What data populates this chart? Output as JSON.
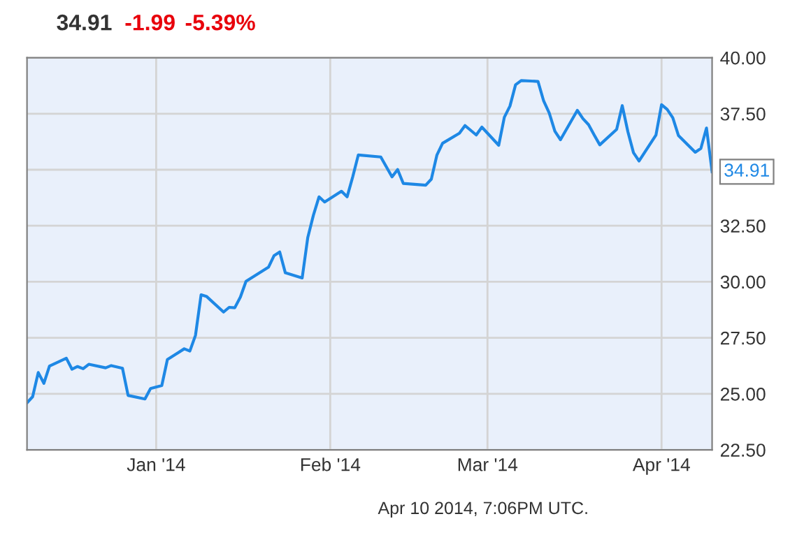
{
  "chart_data": {
    "type": "line",
    "title": "34.91",
    "annotations": [
      "-1.99",
      "-5.39%",
      {
        "text": "34.91",
        "x": "2014-04-10",
        "y": 34.91
      },
      "Apr 10 2014, 7:06PM UTC."
    ],
    "x": [
      "2013-12-09",
      "2013-12-10",
      "2013-12-11",
      "2013-12-12",
      "2013-12-13",
      "2013-12-16",
      "2013-12-17",
      "2013-12-18",
      "2013-12-19",
      "2013-12-20",
      "2013-12-23",
      "2013-12-24",
      "2013-12-26",
      "2013-12-27",
      "2013-12-30",
      "2013-12-31",
      "2014-01-02",
      "2014-01-03",
      "2014-01-06",
      "2014-01-07",
      "2014-01-08",
      "2014-01-09",
      "2014-01-10",
      "2014-01-13",
      "2014-01-14",
      "2014-01-15",
      "2014-01-16",
      "2014-01-17",
      "2014-01-21",
      "2014-01-22",
      "2014-01-23",
      "2014-01-24",
      "2014-01-27",
      "2014-01-28",
      "2014-01-29",
      "2014-01-30",
      "2014-01-31",
      "2014-02-03",
      "2014-02-04",
      "2014-02-05",
      "2014-02-06",
      "2014-02-10",
      "2014-02-12",
      "2014-02-13",
      "2014-02-14",
      "2014-02-18",
      "2014-02-19",
      "2014-02-20",
      "2014-02-21",
      "2014-02-24",
      "2014-02-25",
      "2014-02-26",
      "2014-02-27",
      "2014-02-28",
      "2014-03-03",
      "2014-03-04",
      "2014-03-05",
      "2014-03-06",
      "2014-03-07",
      "2014-03-10",
      "2014-03-11",
      "2014-03-12",
      "2014-03-13",
      "2014-03-14",
      "2014-03-17",
      "2014-03-18",
      "2014-03-19",
      "2014-03-20",
      "2014-03-21",
      "2014-03-24",
      "2014-03-25",
      "2014-03-26",
      "2014-03-27",
      "2014-03-28",
      "2014-03-31",
      "2014-04-01",
      "2014-04-02",
      "2014-04-03",
      "2014-04-04",
      "2014-04-07",
      "2014-04-08",
      "2014-04-09",
      "2014-04-10"
    ],
    "series": [
      {
        "color": "#1e88e5",
        "values": [
          24.6,
          24.87,
          25.95,
          25.47,
          26.24,
          26.59,
          26.1,
          26.22,
          26.12,
          26.32,
          26.16,
          26.26,
          26.14,
          24.93,
          24.77,
          25.24,
          25.37,
          26.53,
          27.01,
          26.91,
          27.61,
          29.42,
          29.34,
          28.65,
          28.86,
          28.84,
          29.32,
          30.02,
          30.65,
          31.17,
          31.33,
          30.4,
          30.17,
          31.98,
          32.97,
          33.79,
          33.56,
          34.04,
          33.79,
          34.68,
          35.66,
          35.57,
          34.68,
          35.01,
          34.39,
          34.31,
          34.58,
          35.66,
          36.18,
          36.63,
          36.97,
          36.76,
          36.55,
          36.9,
          36.09,
          37.34,
          37.84,
          38.79,
          38.98,
          38.94,
          38.07,
          37.53,
          36.72,
          36.34,
          37.65,
          37.28,
          37.01,
          36.55,
          36.11,
          36.8,
          37.86,
          36.7,
          35.76,
          35.39,
          36.55,
          37.9,
          37.69,
          37.32,
          36.53,
          35.78,
          35.95,
          36.86,
          34.91
        ]
      }
    ],
    "xlim": [
      "2013-12-09",
      "2014-04-10"
    ],
    "xticks": [
      {
        "value": "2014-01-01",
        "label": "Jan '14"
      },
      {
        "value": "2014-02-01",
        "label": "Feb '14"
      },
      {
        "value": "2014-03-01",
        "label": "Mar '14"
      },
      {
        "value": "2014-04-01",
        "label": "Apr '14"
      }
    ],
    "ylim": [
      22.5,
      40
    ],
    "yticks": [
      {
        "value": 22.5,
        "label": "22.50"
      },
      {
        "value": 25,
        "label": "25.00"
      },
      {
        "value": 27.5,
        "label": "27.50"
      },
      {
        "value": 30,
        "label": "30.00"
      },
      {
        "value": 32.5,
        "label": "32.50"
      },
      {
        "value": 35,
        "label": null
      },
      {
        "value": 37.5,
        "label": "37.50"
      },
      {
        "value": 40,
        "label": "40.00"
      }
    ],
    "grid": true,
    "marker": "none",
    "line_style": "solid"
  }
}
